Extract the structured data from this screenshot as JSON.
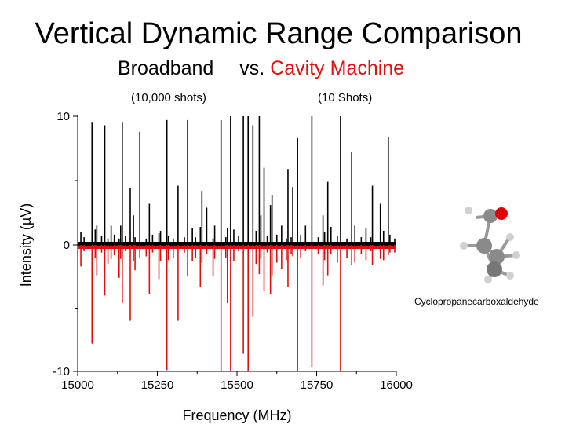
{
  "slide": {
    "title": "Vertical Dynamic Range Comparison",
    "subtitle_left": "Broadband",
    "subtitle_vs": "vs.",
    "subtitle_right": "Cavity Machine",
    "left_shots": "(10,000 shots)",
    "right_shots": "(10 Shots)",
    "molecule_label": "Cyclopropanecarboxaldehyde"
  },
  "colors": {
    "broadband": "#000000",
    "cavity": "#e01010",
    "oxygen": "#e00000",
    "carbon": "#808080",
    "hydrogen": "#c8c8c8"
  },
  "chart_data": {
    "type": "line",
    "title": "",
    "xlabel": "Frequency (MHz)",
    "ylabel": "Intensity (µV)",
    "xlim": [
      15000,
      16000
    ],
    "ylim": [
      -10,
      10
    ],
    "xticks": [
      "15000",
      "15250",
      "15500",
      "15750",
      "16000"
    ],
    "xtick_values": [
      15000,
      15250,
      15500,
      15750,
      16000
    ],
    "yticks": [
      "10",
      "0",
      "-10"
    ],
    "ytick_values": [
      10,
      0,
      -10
    ],
    "series": [
      {
        "color": "#000000",
        "x": [
          15010,
          15020,
          15045,
          15055,
          15060,
          15075,
          15085,
          15095,
          15105,
          15115,
          15130,
          15135,
          15140,
          15150,
          15165,
          15175,
          15180,
          15195,
          15215,
          15225,
          15235,
          15255,
          15260,
          15280,
          15285,
          15300,
          15315,
          15335,
          15345,
          15360,
          15370,
          15385,
          15390,
          15405,
          15425,
          15430,
          15450,
          15465,
          15470,
          15480,
          15490,
          15505,
          15520,
          15535,
          15550,
          15560,
          15570,
          15575,
          15585,
          15595,
          15605,
          15610,
          15625,
          15640,
          15655,
          15660,
          15670,
          15675,
          15690,
          15700,
          15715,
          15735,
          15755,
          15770,
          15775,
          15785,
          15795,
          15815,
          15825,
          15845,
          15860,
          15870,
          15890,
          15905,
          15920,
          15925,
          15950,
          15960,
          15975,
          15980,
          15995
        ],
        "y": [
          1,
          0.6,
          9.5,
          1.2,
          1.5,
          0.7,
          9.3,
          0.5,
          1.5,
          0.8,
          0.5,
          1.5,
          9.5,
          0.7,
          4.4,
          2.3,
          0.6,
          8.8,
          0.5,
          3.2,
          0.8,
          0.9,
          1.1,
          9.7,
          0.7,
          0.5,
          4.6,
          0.6,
          9.7,
          1.3,
          0.6,
          1.4,
          4.2,
          2.9,
          0.5,
          1.5,
          9.7,
          0.6,
          1.3,
          10,
          1.2,
          0.7,
          10,
          10,
          9.3,
          1.1,
          10,
          2.3,
          6,
          0.7,
          3.1,
          3.9,
          0.8,
          1.5,
          0.5,
          5.9,
          0.6,
          4.5,
          8.3,
          0.8,
          1.5,
          10,
          0.6,
          2.3,
          1,
          4.9,
          1.4,
          0.7,
          10,
          0.5,
          7.2,
          1.5,
          0.6,
          1.3,
          0.6,
          4.6,
          3.2,
          1.1,
          8.4,
          0.8,
          0.5
        ]
      },
      {
        "color": "#e01010",
        "x": [
          15010,
          15020,
          15045,
          15055,
          15060,
          15075,
          15085,
          15095,
          15105,
          15115,
          15130,
          15135,
          15140,
          15150,
          15165,
          15175,
          15180,
          15195,
          15215,
          15225,
          15235,
          15255,
          15260,
          15280,
          15285,
          15300,
          15315,
          15335,
          15345,
          15360,
          15370,
          15385,
          15390,
          15405,
          15425,
          15430,
          15450,
          15465,
          15470,
          15480,
          15490,
          15505,
          15520,
          15535,
          15550,
          15560,
          15570,
          15575,
          15585,
          15595,
          15605,
          15610,
          15625,
          15640,
          15655,
          15660,
          15670,
          15675,
          15690,
          15700,
          15715,
          15735,
          15755,
          15770,
          15775,
          15785,
          15795,
          15815,
          15825,
          15845,
          15860,
          15870,
          15890,
          15905,
          15920,
          15925,
          15950,
          15960,
          15975,
          15980,
          15995
        ],
        "y": [
          -1.7,
          -0.5,
          -7.8,
          -1,
          -2.4,
          -0.6,
          -4,
          -1.5,
          -1.1,
          -0.8,
          -2.6,
          -1.1,
          -4.6,
          -0.5,
          -6,
          -1.3,
          -2,
          -1,
          -0.9,
          -3.9,
          -0.6,
          -2.7,
          -1.3,
          -9.9,
          -1.2,
          -1,
          -6,
          -0.6,
          -2.5,
          -1.3,
          -1,
          -3.3,
          -1.4,
          -0.7,
          -2.5,
          -1.1,
          -10,
          -1,
          -4.6,
          -10,
          -1.3,
          -0.5,
          -8.6,
          -10,
          -5.7,
          -1.5,
          -2.3,
          -1.1,
          -3.6,
          -0.6,
          -3.9,
          -2.4,
          -1.4,
          -1.9,
          -1.2,
          -3.3,
          -0.7,
          -0.9,
          -10,
          -1,
          -0.5,
          -9.7,
          -0.7,
          -3.2,
          -1.2,
          -2.4,
          -0.7,
          -1.4,
          -10,
          -1,
          -1.6,
          -1.4,
          -0.7,
          -1.2,
          -0.5,
          -1.6,
          -1.1,
          -1.2,
          -0.8,
          -0.6,
          -0.6
        ]
      }
    ],
    "grid": false,
    "legend": "none"
  }
}
